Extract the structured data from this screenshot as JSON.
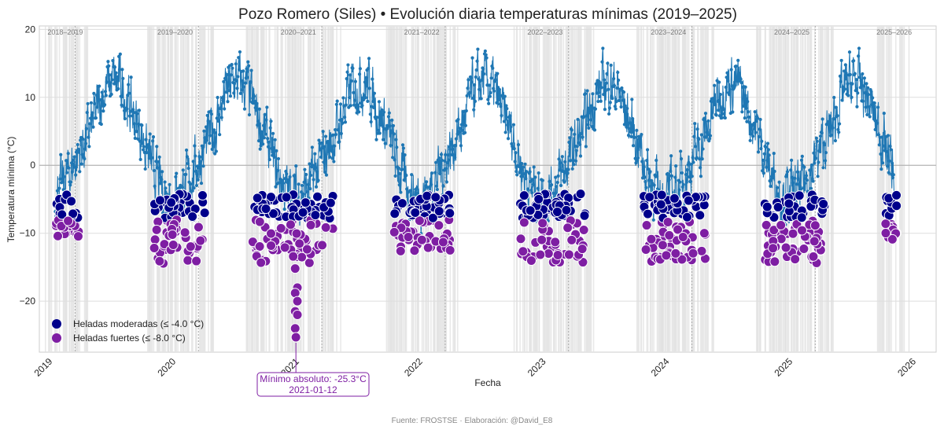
{
  "chart_data": {
    "type": "line",
    "title": "Pozo Romero (Siles) • Evolución diaria temperaturas mínimas (2019–2025)",
    "xlabel": "Fecha",
    "ylabel": "Temperatura mínima (°C)",
    "xlim": [
      2018.95,
      2026.22
    ],
    "ylim": [
      -27.5,
      20.5
    ],
    "x_ticks": [
      2019,
      2020,
      2021,
      2022,
      2023,
      2024,
      2025,
      2026
    ],
    "y_ticks": [
      -20,
      -10,
      0,
      10,
      20
    ],
    "season_labels": [
      {
        "label": "2018–2019",
        "x": 2019.16
      },
      {
        "label": "2019–2020",
        "x": 2020.05
      },
      {
        "label": "2020–2021",
        "x": 2021.05
      },
      {
        "label": "2021–2022",
        "x": 2022.05
      },
      {
        "label": "2022–2023",
        "x": 2023.05
      },
      {
        "label": "2023–2024",
        "x": 2024.05
      },
      {
        "label": "2024–2025",
        "x": 2025.05
      },
      {
        "label": "2025–2026",
        "x": 2025.88
      }
    ],
    "season_dividers": [
      2019.24,
      2020.24,
      2021.24,
      2022.24,
      2023.24,
      2024.24,
      2025.24
    ],
    "daily_series": {
      "name": "Temperatura mínima diaria",
      "color": "#1f77b4",
      "x_start": 2019.08,
      "x_end": 2025.88,
      "monthly_mean_from_january": [
        -4.5,
        -3.5,
        -0.5,
        2.5,
        5.5,
        10.5,
        12.5,
        11.5,
        7.5,
        4.0,
        -1.0,
        -4.0
      ],
      "spread": 4
    },
    "series": [
      {
        "name": "Heladas moderadas (≤ -4.0 °C)",
        "threshold": -4.0,
        "color": "#00008b"
      },
      {
        "name": "Heladas fuertes (≤ -8.0 °C)",
        "threshold": -8.0,
        "color": "#7e1ea3"
      }
    ],
    "frost_clusters": [
      {
        "x_from": 2019.08,
        "x_to": 2019.28,
        "min": -10.5
      },
      {
        "x_from": 2019.88,
        "x_to": 2020.3,
        "min": -15.3
      },
      {
        "x_from": 2020.68,
        "x_to": 2021.33,
        "min": -25.3
      },
      {
        "x_from": 2021.82,
        "x_to": 2022.28,
        "min": -13.0
      },
      {
        "x_from": 2022.85,
        "x_to": 2023.38,
        "min": -14.5
      },
      {
        "x_from": 2023.85,
        "x_to": 2024.35,
        "min": -16.0
      },
      {
        "x_from": 2024.82,
        "x_to": 2025.32,
        "min": -15.0
      },
      {
        "x_from": 2025.8,
        "x_to": 2025.9,
        "min": -11.0
      }
    ],
    "absolute_minimum": {
      "x": 2021.03,
      "y": -25.3,
      "label": "Mínimo absoluto: -25.3°C",
      "date": "2021-01-12"
    },
    "legend_position": "lower-left"
  },
  "footer": {
    "source": "Fuente: FROSTSE · Elaboración: @David_E8"
  }
}
